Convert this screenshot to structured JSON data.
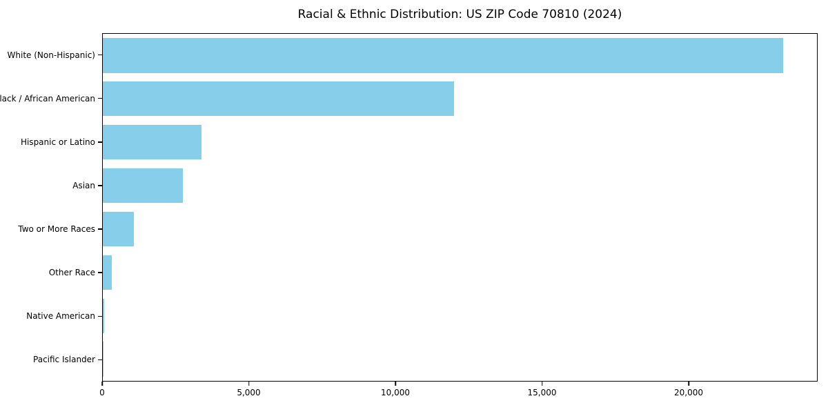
{
  "chart_data": {
    "type": "bar",
    "orientation": "horizontal",
    "title": "Racial & Ethnic Distribution: US ZIP Code 70810 (2024)",
    "categories": [
      "White (Non-Hispanic)",
      "Black / African American",
      "Hispanic or Latino",
      "Asian",
      "Two or More Races",
      "Other Race",
      "Native American",
      "Pacific Islander"
    ],
    "values": [
      23250,
      12000,
      3365,
      2730,
      1060,
      300,
      40,
      10
    ],
    "xlabel": "",
    "ylabel": "",
    "xlim": [
      0,
      24400
    ],
    "x_ticks": [
      {
        "value": 0,
        "label": "0"
      },
      {
        "value": 5000,
        "label": "5,000"
      },
      {
        "value": 10000,
        "label": "10,000"
      },
      {
        "value": 15000,
        "label": "15,000"
      },
      {
        "value": 20000,
        "label": "20,000"
      }
    ],
    "bar_color": "#87CEEB",
    "frame_color": "#000000",
    "background_color": "#ffffff",
    "grid": false,
    "legend": false
  }
}
